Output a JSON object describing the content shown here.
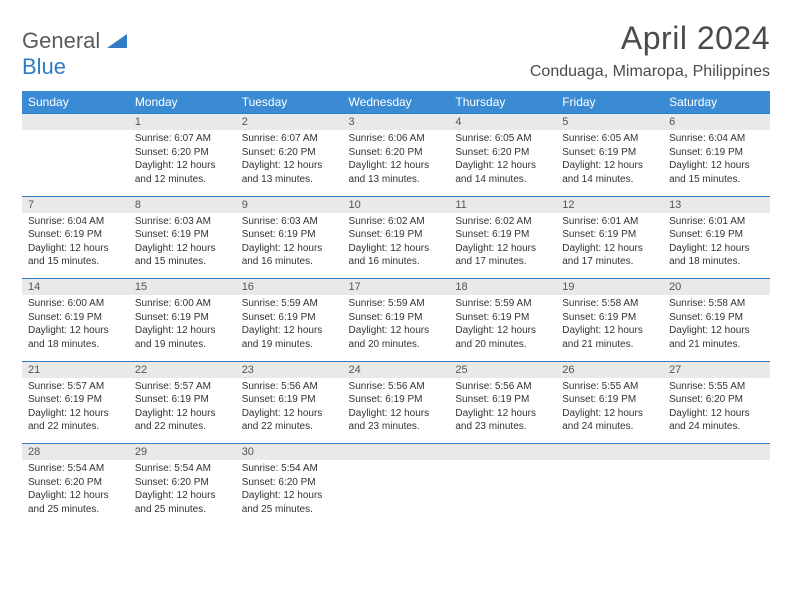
{
  "brand": {
    "part1": "General",
    "part2": "Blue"
  },
  "title": "April 2024",
  "location": "Conduaga, Mimaropa, Philippines",
  "colors": {
    "header_bg": "#3b8bd4",
    "header_text": "#ffffff",
    "daynum_bg": "#e9e9e9",
    "border": "#2f7cc4",
    "text": "#333333",
    "brand_gray": "#5a5a5a",
    "brand_blue": "#2f7cc4"
  },
  "day_headers": [
    "Sunday",
    "Monday",
    "Tuesday",
    "Wednesday",
    "Thursday",
    "Friday",
    "Saturday"
  ],
  "weeks": [
    [
      null,
      {
        "n": "1",
        "sr": "6:07 AM",
        "ss": "6:20 PM",
        "dl": "12 hours and 12 minutes."
      },
      {
        "n": "2",
        "sr": "6:07 AM",
        "ss": "6:20 PM",
        "dl": "12 hours and 13 minutes."
      },
      {
        "n": "3",
        "sr": "6:06 AM",
        "ss": "6:20 PM",
        "dl": "12 hours and 13 minutes."
      },
      {
        "n": "4",
        "sr": "6:05 AM",
        "ss": "6:20 PM",
        "dl": "12 hours and 14 minutes."
      },
      {
        "n": "5",
        "sr": "6:05 AM",
        "ss": "6:19 PM",
        "dl": "12 hours and 14 minutes."
      },
      {
        "n": "6",
        "sr": "6:04 AM",
        "ss": "6:19 PM",
        "dl": "12 hours and 15 minutes."
      }
    ],
    [
      {
        "n": "7",
        "sr": "6:04 AM",
        "ss": "6:19 PM",
        "dl": "12 hours and 15 minutes."
      },
      {
        "n": "8",
        "sr": "6:03 AM",
        "ss": "6:19 PM",
        "dl": "12 hours and 15 minutes."
      },
      {
        "n": "9",
        "sr": "6:03 AM",
        "ss": "6:19 PM",
        "dl": "12 hours and 16 minutes."
      },
      {
        "n": "10",
        "sr": "6:02 AM",
        "ss": "6:19 PM",
        "dl": "12 hours and 16 minutes."
      },
      {
        "n": "11",
        "sr": "6:02 AM",
        "ss": "6:19 PM",
        "dl": "12 hours and 17 minutes."
      },
      {
        "n": "12",
        "sr": "6:01 AM",
        "ss": "6:19 PM",
        "dl": "12 hours and 17 minutes."
      },
      {
        "n": "13",
        "sr": "6:01 AM",
        "ss": "6:19 PM",
        "dl": "12 hours and 18 minutes."
      }
    ],
    [
      {
        "n": "14",
        "sr": "6:00 AM",
        "ss": "6:19 PM",
        "dl": "12 hours and 18 minutes."
      },
      {
        "n": "15",
        "sr": "6:00 AM",
        "ss": "6:19 PM",
        "dl": "12 hours and 19 minutes."
      },
      {
        "n": "16",
        "sr": "5:59 AM",
        "ss": "6:19 PM",
        "dl": "12 hours and 19 minutes."
      },
      {
        "n": "17",
        "sr": "5:59 AM",
        "ss": "6:19 PM",
        "dl": "12 hours and 20 minutes."
      },
      {
        "n": "18",
        "sr": "5:59 AM",
        "ss": "6:19 PM",
        "dl": "12 hours and 20 minutes."
      },
      {
        "n": "19",
        "sr": "5:58 AM",
        "ss": "6:19 PM",
        "dl": "12 hours and 21 minutes."
      },
      {
        "n": "20",
        "sr": "5:58 AM",
        "ss": "6:19 PM",
        "dl": "12 hours and 21 minutes."
      }
    ],
    [
      {
        "n": "21",
        "sr": "5:57 AM",
        "ss": "6:19 PM",
        "dl": "12 hours and 22 minutes."
      },
      {
        "n": "22",
        "sr": "5:57 AM",
        "ss": "6:19 PM",
        "dl": "12 hours and 22 minutes."
      },
      {
        "n": "23",
        "sr": "5:56 AM",
        "ss": "6:19 PM",
        "dl": "12 hours and 22 minutes."
      },
      {
        "n": "24",
        "sr": "5:56 AM",
        "ss": "6:19 PM",
        "dl": "12 hours and 23 minutes."
      },
      {
        "n": "25",
        "sr": "5:56 AM",
        "ss": "6:19 PM",
        "dl": "12 hours and 23 minutes."
      },
      {
        "n": "26",
        "sr": "5:55 AM",
        "ss": "6:19 PM",
        "dl": "12 hours and 24 minutes."
      },
      {
        "n": "27",
        "sr": "5:55 AM",
        "ss": "6:20 PM",
        "dl": "12 hours and 24 minutes."
      }
    ],
    [
      {
        "n": "28",
        "sr": "5:54 AM",
        "ss": "6:20 PM",
        "dl": "12 hours and 25 minutes."
      },
      {
        "n": "29",
        "sr": "5:54 AM",
        "ss": "6:20 PM",
        "dl": "12 hours and 25 minutes."
      },
      {
        "n": "30",
        "sr": "5:54 AM",
        "ss": "6:20 PM",
        "dl": "12 hours and 25 minutes."
      },
      null,
      null,
      null,
      null
    ]
  ],
  "labels": {
    "sunrise": "Sunrise:",
    "sunset": "Sunset:",
    "daylight": "Daylight:"
  }
}
